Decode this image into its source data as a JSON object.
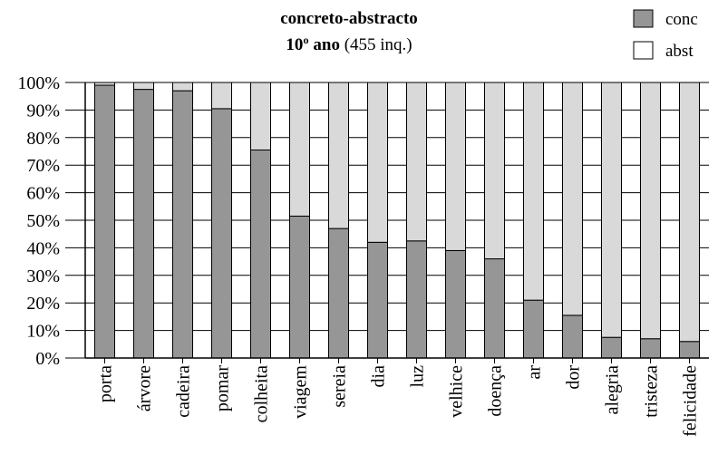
{
  "chart_data": {
    "type": "bar",
    "stacked": true,
    "title": "concreto-abstracto",
    "subtitle_bold": "10º ano",
    "subtitle_rest": " (455 inq.)",
    "categories": [
      "porta",
      "árvore",
      "cadeira",
      "pomar",
      "colheita",
      "viagem",
      "sereia",
      "dia",
      "luz",
      "velhice",
      "doença",
      "ar",
      "dor",
      "alegria",
      "tristeza",
      "felicidade"
    ],
    "series": [
      {
        "name": "conc",
        "color": "#969696",
        "values": [
          99,
          97.5,
          97,
          90.5,
          75.5,
          51.5,
          47,
          42,
          42.5,
          39,
          36,
          21,
          15.5,
          7.5,
          7,
          6
        ]
      },
      {
        "name": "abst",
        "color": "#d9d9d9",
        "values": [
          1,
          2.5,
          3,
          9.5,
          24.5,
          48.5,
          53,
          58,
          57.5,
          61,
          64,
          79,
          84.5,
          92.5,
          93,
          94
        ]
      }
    ],
    "legend": {
      "position": "top-right",
      "conc_swatch_color": "#969696",
      "abst_swatch_color": "#ffffff"
    },
    "ylim": [
      0,
      100
    ],
    "yticks": [
      "0%",
      "10%",
      "20%",
      "30%",
      "40%",
      "50%",
      "60%",
      "70%",
      "80%",
      "90%",
      "100%"
    ],
    "grid": true
  }
}
